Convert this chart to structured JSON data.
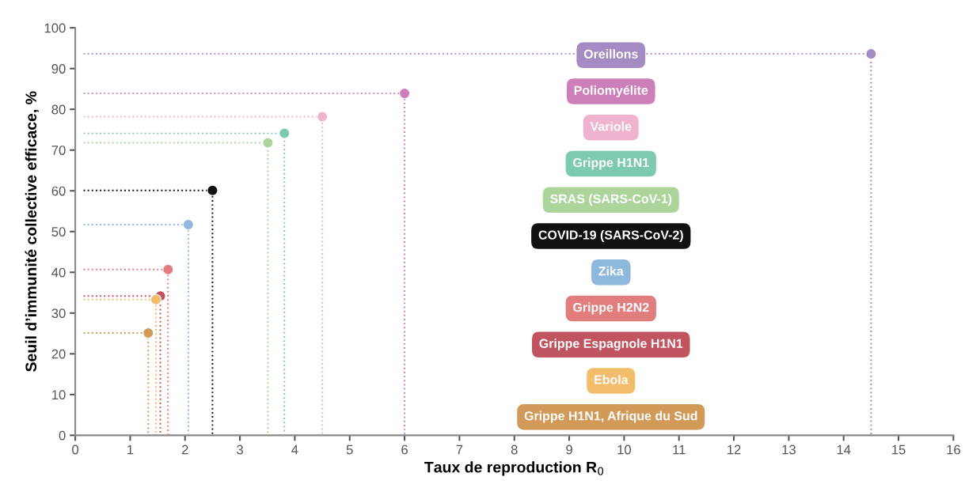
{
  "chart_data": {
    "type": "scatter",
    "xlabel": "Taux de reproduction R$_{0}$",
    "ylabel": "Seuil d’immunité collective efficace, %",
    "xlim": [
      0,
      16
    ],
    "ylim": [
      0,
      100
    ],
    "xticks": [
      0,
      1,
      2,
      3,
      4,
      5,
      6,
      7,
      8,
      9,
      10,
      11,
      12,
      13,
      14,
      15,
      16
    ],
    "yticks": [
      0,
      10,
      20,
      30,
      40,
      50,
      60,
      70,
      80,
      90,
      100
    ],
    "grid": false,
    "marker": "circle",
    "line_style": "dotted",
    "series": [
      {
        "name": "Oreillons",
        "color": "#a58bc4",
        "x": [
          14.5
        ],
        "values": [
          93.6
        ]
      },
      {
        "name": "Poliomyélite",
        "color": "#cc7fb8",
        "x": [
          6.0
        ],
        "values": [
          83.9
        ]
      },
      {
        "name": "Variole",
        "color": "#f0b3cf",
        "x": [
          4.5
        ],
        "values": [
          78.2
        ]
      },
      {
        "name": "Grippe H1N1",
        "color": "#7ecab0",
        "x": [
          3.81
        ],
        "values": [
          74.1
        ]
      },
      {
        "name": "SRAS (SARS-CoV-1)",
        "color": "#acd49b",
        "x": [
          3.51
        ],
        "values": [
          71.8
        ]
      },
      {
        "name": "COVID-19 (SARS-CoV-2)",
        "color": "#111111",
        "x": [
          2.5
        ],
        "values": [
          60.1
        ]
      },
      {
        "name": "Zika",
        "color": "#8fb8dd",
        "x": [
          2.06
        ],
        "values": [
          51.7
        ]
      },
      {
        "name": "Grippe H2N2",
        "color": "#e27d7d",
        "x": [
          1.69
        ],
        "values": [
          40.7
        ]
      },
      {
        "name": "Grippe Espagnole H1N1",
        "color": "#c0555f",
        "x": [
          1.55
        ],
        "values": [
          34.2
        ]
      },
      {
        "name": "Ebola",
        "color": "#f2bd6b",
        "x": [
          1.47
        ],
        "values": [
          33.3
        ]
      },
      {
        "name": "Grippe H1N1, Afrique du Sud",
        "color": "#d29a59",
        "x": [
          1.33
        ],
        "values": [
          25.1
        ]
      },
      {
        "type": "line",
        "marker": "none",
        "color": "#a58bc4",
        "x": [
          0.15,
          14.5,
          14.5
        ],
        "values": [
          93.6,
          93.6,
          0
        ]
      },
      {
        "type": "line",
        "marker": "none",
        "color": "#cc7fb8",
        "x": [
          0.15,
          6.0,
          6.0
        ],
        "values": [
          83.9,
          83.9,
          0
        ]
      },
      {
        "type": "line",
        "marker": "none",
        "color": "#f0b3cf",
        "x": [
          0.15,
          4.5,
          4.5
        ],
        "values": [
          78.2,
          78.2,
          0
        ]
      },
      {
        "type": "line",
        "marker": "none",
        "color": "#7ecab0",
        "x": [
          0.15,
          3.81,
          3.81
        ],
        "values": [
          74.1,
          74.1,
          0
        ]
      },
      {
        "type": "line",
        "marker": "none",
        "color": "#acd49b",
        "x": [
          0.15,
          3.51,
          3.51
        ],
        "values": [
          71.8,
          71.8,
          0
        ]
      },
      {
        "type": "line",
        "marker": "none",
        "color": "#111111",
        "x": [
          0.15,
          2.5,
          2.5
        ],
        "values": [
          60.1,
          60.1,
          0
        ]
      },
      {
        "type": "line",
        "marker": "none",
        "color": "#8fb8dd",
        "x": [
          0.15,
          2.06,
          2.06
        ],
        "values": [
          51.7,
          51.7,
          0
        ]
      },
      {
        "type": "line",
        "marker": "none",
        "color": "#e27d7d",
        "x": [
          0.15,
          1.69,
          1.69
        ],
        "values": [
          40.7,
          40.7,
          0
        ]
      },
      {
        "type": "line",
        "marker": "none",
        "color": "#c0555f",
        "x": [
          0.15,
          1.55,
          1.55
        ],
        "values": [
          34.2,
          34.2,
          0
        ]
      },
      {
        "type": "line",
        "marker": "none",
        "color": "#f2bd6b",
        "x": [
          0.15,
          1.47,
          1.47
        ],
        "values": [
          33.3,
          33.3,
          0
        ]
      },
      {
        "type": "line",
        "marker": "none",
        "color": "#d29a59",
        "x": [
          0.15,
          1.33,
          1.33
        ],
        "values": [
          25.1,
          25.1,
          0
        ]
      }
    ]
  }
}
